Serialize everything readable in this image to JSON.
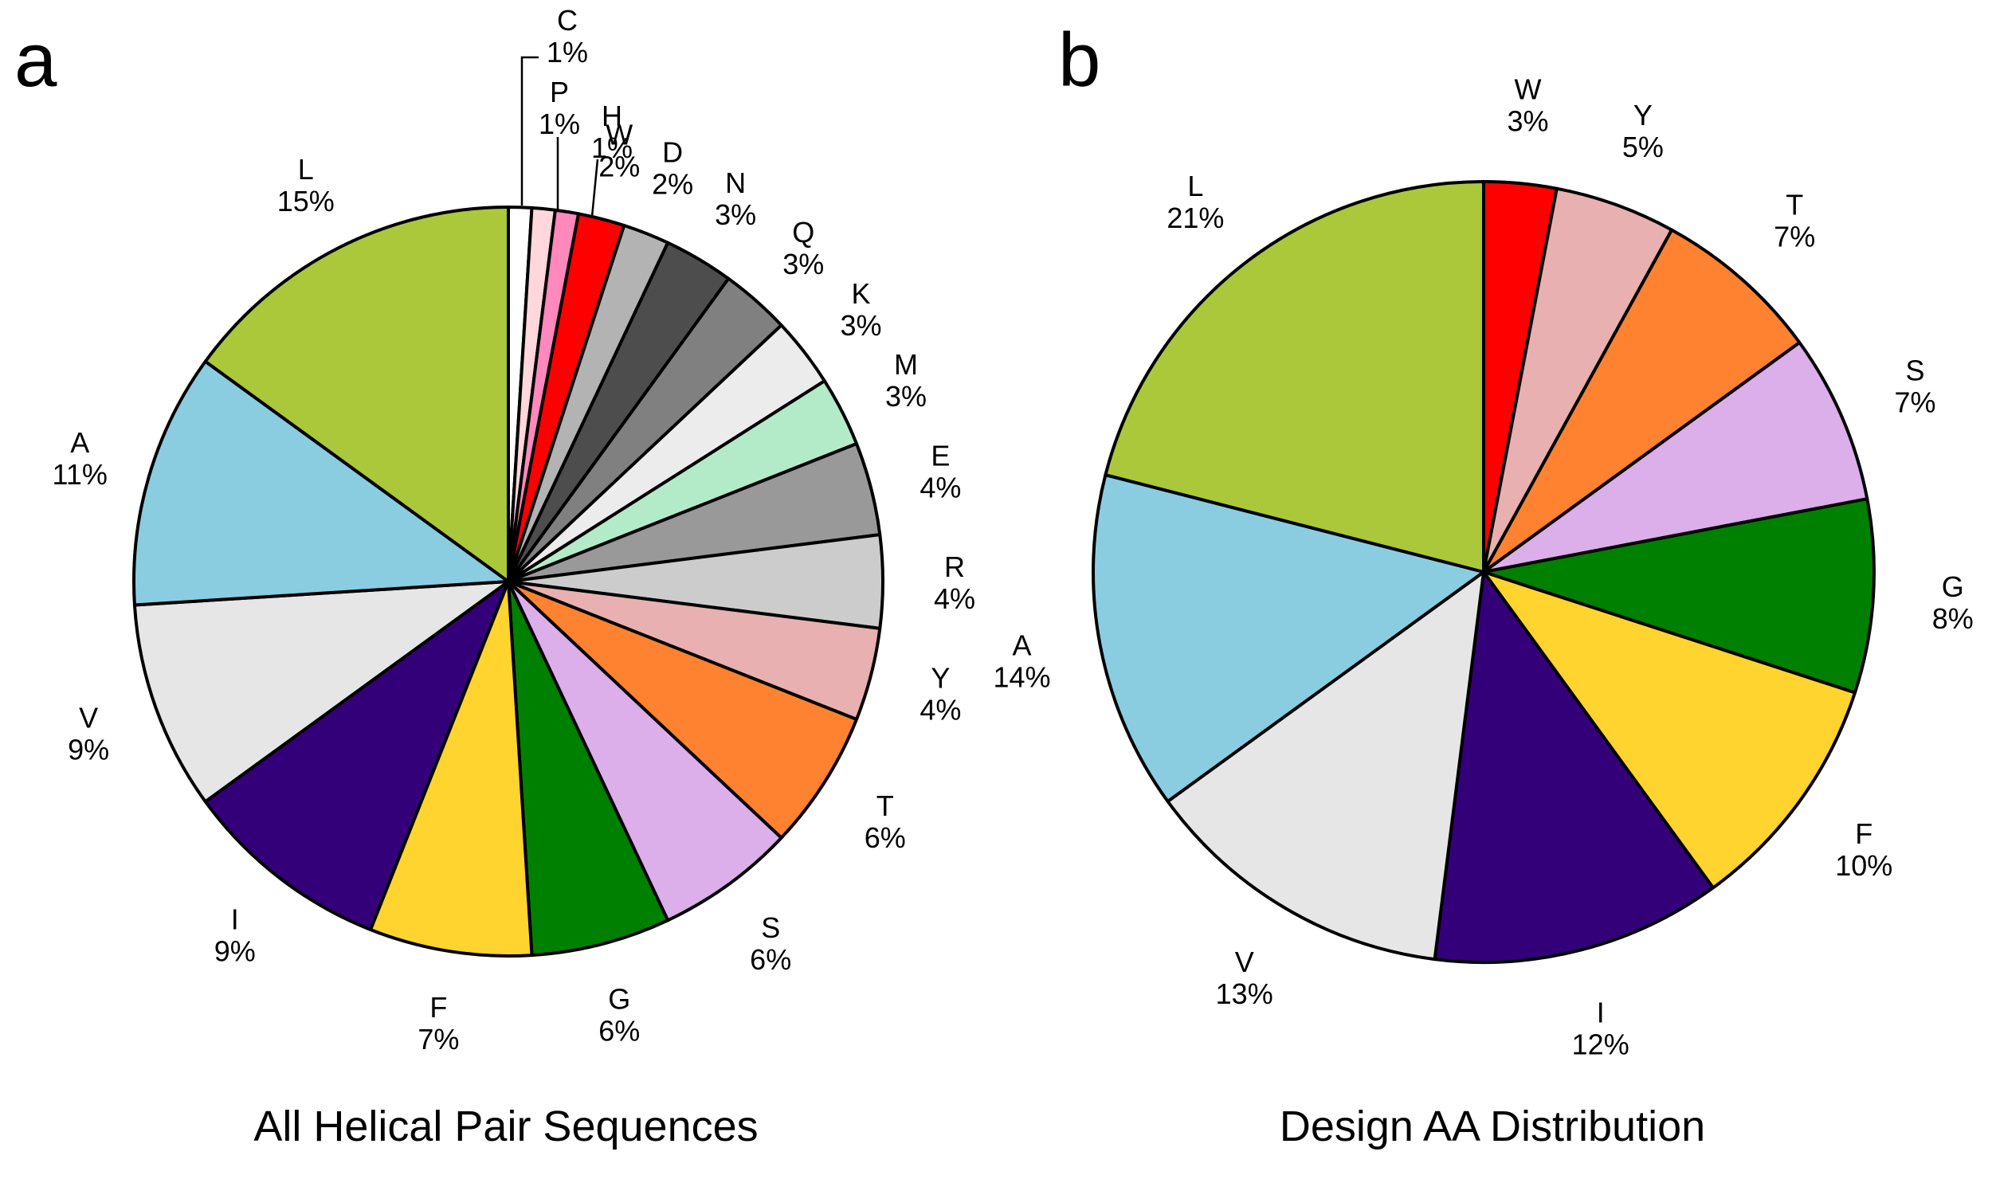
{
  "chart_data": [
    {
      "type": "pie",
      "panel_label": "a",
      "title": "All Helical Pair Sequences",
      "start": "12 o'clock",
      "direction": "clockwise",
      "slices": [
        {
          "label": "C",
          "value": 1,
          "display": "1%",
          "color": "#ffffff"
        },
        {
          "label": "P",
          "value": 1,
          "display": "1%",
          "color": "#ffd7dc"
        },
        {
          "label": "H",
          "value": 1,
          "display": "1%",
          "color": "#ff88bc"
        },
        {
          "label": "W",
          "value": 2,
          "display": "2%",
          "color": "#ff0000"
        },
        {
          "label": "D",
          "value": 2,
          "display": "2%",
          "color": "#b3b3b3"
        },
        {
          "label": "N",
          "value": 3,
          "display": "3%",
          "color": "#4d4d4d"
        },
        {
          "label": "Q",
          "value": 3,
          "display": "3%",
          "color": "#808080"
        },
        {
          "label": "K",
          "value": 3,
          "display": "3%",
          "color": "#ececec"
        },
        {
          "label": "M",
          "value": 3,
          "display": "3%",
          "color": "#b3ebc9"
        },
        {
          "label": "E",
          "value": 4,
          "display": "4%",
          "color": "#999999"
        },
        {
          "label": "R",
          "value": 4,
          "display": "4%",
          "color": "#cccccc"
        },
        {
          "label": "Y",
          "value": 4,
          "display": "4%",
          "color": "#e8b0b0"
        },
        {
          "label": "T",
          "value": 6,
          "display": "6%",
          "color": "#ff8230"
        },
        {
          "label": "S",
          "value": 6,
          "display": "6%",
          "color": "#dcaeea"
        },
        {
          "label": "G",
          "value": 6,
          "display": "6%",
          "color": "#008000"
        },
        {
          "label": "F",
          "value": 7,
          "display": "7%",
          "color": "#ffd42f"
        },
        {
          "label": "I",
          "value": 9,
          "display": "9%",
          "color": "#33007a"
        },
        {
          "label": "V",
          "value": 9,
          "display": "9%",
          "color": "#e6e6e6"
        },
        {
          "label": "A",
          "value": 11,
          "display": "11%",
          "color": "#8acde0"
        },
        {
          "label": "L",
          "value": 15,
          "display": "15%",
          "color": "#abc83a"
        }
      ]
    },
    {
      "type": "pie",
      "panel_label": "b",
      "title": "Design AA Distribution",
      "start": "12 o'clock",
      "direction": "clockwise",
      "slices": [
        {
          "label": "W",
          "value": 3,
          "display": "3%",
          "color": "#ff0000"
        },
        {
          "label": "Y",
          "value": 5,
          "display": "5%",
          "color": "#e8b0b0"
        },
        {
          "label": "T",
          "value": 7,
          "display": "7%",
          "color": "#ff8230"
        },
        {
          "label": "S",
          "value": 7,
          "display": "7%",
          "color": "#dcaeea"
        },
        {
          "label": "G",
          "value": 8,
          "display": "8%",
          "color": "#008000"
        },
        {
          "label": "F",
          "value": 10,
          "display": "10%",
          "color": "#ffd42f"
        },
        {
          "label": "I",
          "value": 12,
          "display": "12%",
          "color": "#33007a"
        },
        {
          "label": "V",
          "value": 13,
          "display": "13%",
          "color": "#e6e6e6"
        },
        {
          "label": "A",
          "value": 14,
          "display": "14%",
          "color": "#8acde0"
        },
        {
          "label": "L",
          "value": 21,
          "display": "21%",
          "color": "#abc83a"
        }
      ]
    }
  ]
}
